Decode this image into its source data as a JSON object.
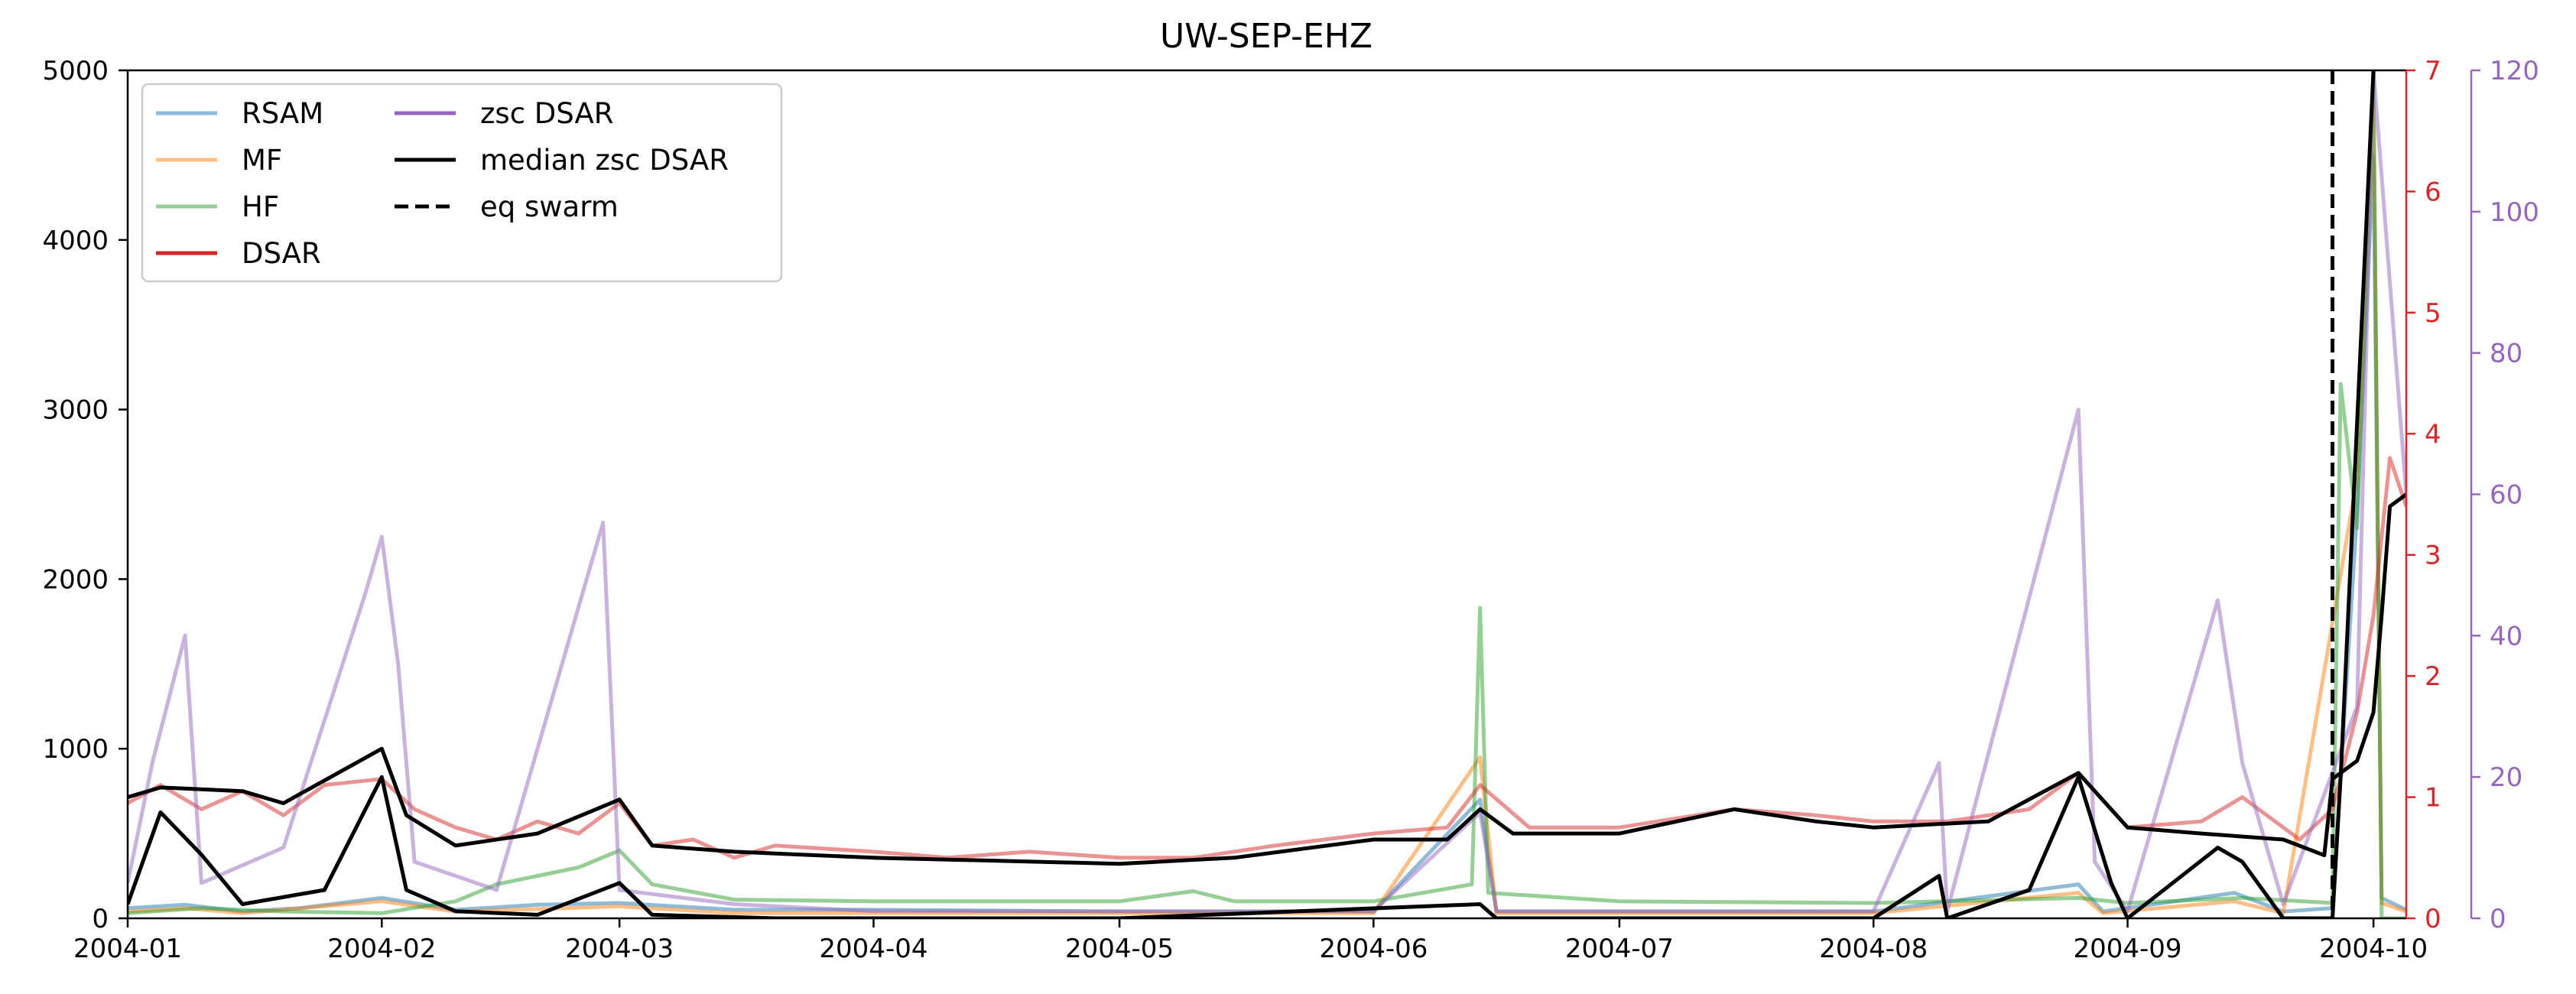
{
  "chart_data": {
    "type": "line",
    "title": "UW-SEP-EHZ",
    "xlabel": "",
    "ylabel": "",
    "x_range": [
      "2004-01-01",
      "2004-10-05"
    ],
    "x_ticks": [
      "2004-01",
      "2004-02",
      "2004-03",
      "2004-04",
      "2004-05",
      "2004-06",
      "2004-07",
      "2004-08",
      "2004-09",
      "2004-10"
    ],
    "axes": {
      "left": {
        "ylim": [
          0,
          5000
        ],
        "ticks": [
          "0",
          "1000",
          "2000",
          "3000",
          "4000",
          "5000"
        ],
        "color": "#000000"
      },
      "right1": {
        "ylim": [
          0,
          7
        ],
        "ticks": [
          "0",
          "1",
          "2",
          "3",
          "4",
          "5",
          "6",
          "7"
        ],
        "color": "#d62728"
      },
      "right2": {
        "ylim": [
          0,
          120
        ],
        "ticks": [
          "0",
          "20",
          "40",
          "60",
          "80",
          "100",
          "120"
        ],
        "color": "#9467bd"
      }
    },
    "legend": {
      "placement": "upper-left",
      "columns": 2,
      "entries": [
        {
          "label": "RSAM",
          "color": "#1f77b4",
          "style": "solid",
          "alpha": 0.5
        },
        {
          "label": "MF",
          "color": "#ff7f0e",
          "style": "solid",
          "alpha": 0.5
        },
        {
          "label": "HF",
          "color": "#2ca02c",
          "style": "solid",
          "alpha": 0.5
        },
        {
          "label": "DSAR",
          "color": "#d62728",
          "style": "solid",
          "alpha": 1
        },
        {
          "label": "zsc DSAR",
          "color": "#9467bd",
          "style": "solid",
          "alpha": 1
        },
        {
          "label": "median zsc DSAR",
          "color": "#000000",
          "style": "solid",
          "alpha": 1
        },
        {
          "label": "eq swarm",
          "color": "#000000",
          "style": "dashed",
          "alpha": 1
        }
      ]
    },
    "series": [
      {
        "name": "RSAM",
        "axis": "left",
        "color": "#1f77b4",
        "alpha": 0.5,
        "points": [
          [
            "2004-01-01",
            60
          ],
          [
            "2004-01-08",
            80
          ],
          [
            "2004-01-15",
            40
          ],
          [
            "2004-01-22",
            60
          ],
          [
            "2004-02-01",
            120
          ],
          [
            "2004-02-10",
            50
          ],
          [
            "2004-02-20",
            80
          ],
          [
            "2004-03-01",
            90
          ],
          [
            "2004-03-15",
            50
          ],
          [
            "2004-04-01",
            50
          ],
          [
            "2004-05-01",
            40
          ],
          [
            "2004-06-01",
            40
          ],
          [
            "2004-06-14",
            700
          ],
          [
            "2004-06-16",
            40
          ],
          [
            "2004-07-01",
            40
          ],
          [
            "2004-08-01",
            40
          ],
          [
            "2004-08-26",
            200
          ],
          [
            "2004-08-29",
            40
          ],
          [
            "2004-09-14",
            150
          ],
          [
            "2004-09-20",
            40
          ],
          [
            "2004-09-26",
            60
          ],
          [
            "2004-09-29",
            2400
          ],
          [
            "2004-10-01",
            4500
          ],
          [
            "2004-10-02",
            120
          ],
          [
            "2004-10-05",
            50
          ]
        ]
      },
      {
        "name": "MF",
        "axis": "left",
        "color": "#ff7f0e",
        "alpha": 0.5,
        "points": [
          [
            "2004-01-01",
            40
          ],
          [
            "2004-01-08",
            60
          ],
          [
            "2004-01-15",
            30
          ],
          [
            "2004-02-01",
            100
          ],
          [
            "2004-02-10",
            40
          ],
          [
            "2004-03-01",
            70
          ],
          [
            "2004-03-15",
            30
          ],
          [
            "2004-04-01",
            30
          ],
          [
            "2004-05-01",
            30
          ],
          [
            "2004-06-01",
            30
          ],
          [
            "2004-06-14",
            950
          ],
          [
            "2004-06-16",
            30
          ],
          [
            "2004-07-01",
            30
          ],
          [
            "2004-08-01",
            30
          ],
          [
            "2004-08-26",
            150
          ],
          [
            "2004-08-29",
            30
          ],
          [
            "2004-09-14",
            100
          ],
          [
            "2004-09-20",
            30
          ],
          [
            "2004-09-29",
            2600
          ],
          [
            "2004-10-01",
            4800
          ],
          [
            "2004-10-02",
            90
          ],
          [
            "2004-10-05",
            40
          ]
        ]
      },
      {
        "name": "HF",
        "axis": "left",
        "color": "#2ca02c",
        "alpha": 0.5,
        "points": [
          [
            "2004-01-01",
            30
          ],
          [
            "2004-01-10",
            60
          ],
          [
            "2004-01-20",
            40
          ],
          [
            "2004-02-01",
            30
          ],
          [
            "2004-02-10",
            100
          ],
          [
            "2004-02-15",
            200
          ],
          [
            "2004-02-25",
            300
          ],
          [
            "2004-03-01",
            400
          ],
          [
            "2004-03-05",
            200
          ],
          [
            "2004-03-15",
            110
          ],
          [
            "2004-04-01",
            100
          ],
          [
            "2004-05-01",
            100
          ],
          [
            "2004-05-10",
            160
          ],
          [
            "2004-05-15",
            100
          ],
          [
            "2004-06-01",
            100
          ],
          [
            "2004-06-13",
            200
          ],
          [
            "2004-06-14",
            1830
          ],
          [
            "2004-06-15",
            150
          ],
          [
            "2004-07-01",
            100
          ],
          [
            "2004-08-01",
            90
          ],
          [
            "2004-08-26",
            120
          ],
          [
            "2004-09-01",
            90
          ],
          [
            "2004-09-15",
            120
          ],
          [
            "2004-09-26",
            90
          ],
          [
            "2004-09-27",
            3150
          ],
          [
            "2004-09-29",
            2300
          ],
          [
            "2004-10-01",
            5000
          ],
          [
            "2004-10-02",
            0
          ],
          [
            "2004-10-05",
            0
          ]
        ]
      },
      {
        "name": "DSAR",
        "axis": "right1",
        "color": "#d62728",
        "alpha": 0.5,
        "points": [
          [
            "2004-01-01",
            0.95
          ],
          [
            "2004-01-05",
            1.1
          ],
          [
            "2004-01-10",
            0.9
          ],
          [
            "2004-01-15",
            1.05
          ],
          [
            "2004-01-20",
            0.85
          ],
          [
            "2004-01-25",
            1.1
          ],
          [
            "2004-02-01",
            1.15
          ],
          [
            "2004-02-05",
            0.9
          ],
          [
            "2004-02-10",
            0.75
          ],
          [
            "2004-02-15",
            0.65
          ],
          [
            "2004-02-20",
            0.8
          ],
          [
            "2004-02-25",
            0.7
          ],
          [
            "2004-03-01",
            0.95
          ],
          [
            "2004-03-05",
            0.6
          ],
          [
            "2004-03-10",
            0.65
          ],
          [
            "2004-03-15",
            0.5
          ],
          [
            "2004-03-20",
            0.6
          ],
          [
            "2004-04-01",
            0.55
          ],
          [
            "2004-04-10",
            0.5
          ],
          [
            "2004-04-20",
            0.55
          ],
          [
            "2004-05-01",
            0.5
          ],
          [
            "2004-05-10",
            0.5
          ],
          [
            "2004-05-20",
            0.6
          ],
          [
            "2004-06-01",
            0.7
          ],
          [
            "2004-06-10",
            0.75
          ],
          [
            "2004-06-14",
            1.1
          ],
          [
            "2004-06-20",
            0.75
          ],
          [
            "2004-07-01",
            0.75
          ],
          [
            "2004-07-15",
            0.9
          ],
          [
            "2004-07-25",
            0.85
          ],
          [
            "2004-08-01",
            0.8
          ],
          [
            "2004-08-10",
            0.8
          ],
          [
            "2004-08-20",
            0.9
          ],
          [
            "2004-08-26",
            1.2
          ],
          [
            "2004-09-01",
            0.75
          ],
          [
            "2004-09-10",
            0.8
          ],
          [
            "2004-09-15",
            1.0
          ],
          [
            "2004-09-22",
            0.65
          ],
          [
            "2004-09-26",
            0.9
          ],
          [
            "2004-09-29",
            1.7
          ],
          [
            "2004-10-01",
            2.5
          ],
          [
            "2004-10-03",
            3.8
          ],
          [
            "2004-10-05",
            3.4
          ]
        ]
      },
      {
        "name": "zsc DSAR",
        "axis": "right2",
        "color": "#9467bd",
        "alpha": 0.5,
        "points": [
          [
            "2004-01-01",
            5
          ],
          [
            "2004-01-04",
            22
          ],
          [
            "2004-01-08",
            40
          ],
          [
            "2004-01-10",
            5
          ],
          [
            "2004-01-20",
            10
          ],
          [
            "2004-01-30",
            46
          ],
          [
            "2004-02-01",
            54
          ],
          [
            "2004-02-03",
            36
          ],
          [
            "2004-02-05",
            8
          ],
          [
            "2004-02-15",
            4
          ],
          [
            "2004-02-28",
            56
          ],
          [
            "2004-03-01",
            4
          ],
          [
            "2004-03-15",
            2
          ],
          [
            "2004-04-01",
            1
          ],
          [
            "2004-05-01",
            1
          ],
          [
            "2004-06-01",
            1
          ],
          [
            "2004-06-14",
            15
          ],
          [
            "2004-06-16",
            1
          ],
          [
            "2004-07-01",
            1
          ],
          [
            "2004-08-01",
            1
          ],
          [
            "2004-08-09",
            22
          ],
          [
            "2004-08-10",
            1
          ],
          [
            "2004-08-26",
            72
          ],
          [
            "2004-08-28",
            8
          ],
          [
            "2004-09-01",
            1
          ],
          [
            "2004-09-12",
            45
          ],
          [
            "2004-09-15",
            22
          ],
          [
            "2004-09-20",
            2
          ],
          [
            "2004-09-29",
            30
          ],
          [
            "2004-10-01",
            120
          ],
          [
            "2004-10-05",
            60
          ]
        ]
      },
      {
        "name": "median zsc DSAR",
        "axis": "right1",
        "color": "#000000",
        "alpha": 1,
        "points": [
          [
            "2004-01-01",
            1.0
          ],
          [
            "2004-01-05",
            1.08
          ],
          [
            "2004-01-15",
            1.05
          ],
          [
            "2004-01-20",
            0.95
          ],
          [
            "2004-02-01",
            1.4
          ],
          [
            "2004-02-04",
            0.85
          ],
          [
            "2004-02-10",
            0.6
          ],
          [
            "2004-02-20",
            0.7
          ],
          [
            "2004-03-01",
            0.98
          ],
          [
            "2004-03-05",
            0.6
          ],
          [
            "2004-03-15",
            0.55
          ],
          [
            "2004-04-01",
            0.5
          ],
          [
            "2004-05-01",
            0.45
          ],
          [
            "2004-05-15",
            0.5
          ],
          [
            "2004-06-01",
            0.65
          ],
          [
            "2004-06-10",
            0.65
          ],
          [
            "2004-06-14",
            0.9
          ],
          [
            "2004-06-18",
            0.7
          ],
          [
            "2004-07-01",
            0.7
          ],
          [
            "2004-07-15",
            0.9
          ],
          [
            "2004-07-25",
            0.8
          ],
          [
            "2004-08-01",
            0.75
          ],
          [
            "2004-08-15",
            0.8
          ],
          [
            "2004-08-26",
            1.2
          ],
          [
            "2004-09-01",
            0.75
          ],
          [
            "2004-09-10",
            0.7
          ],
          [
            "2004-09-20",
            0.65
          ],
          [
            "2004-09-25",
            0.52
          ],
          [
            "2004-09-26",
            1.15
          ],
          [
            "2004-09-29",
            1.3
          ],
          [
            "2004-10-01",
            1.7
          ],
          [
            "2004-10-02",
            2.5
          ],
          [
            "2004-10-03",
            3.4
          ],
          [
            "2004-10-05",
            3.5
          ]
        ]
      },
      {
        "name": "median zsc DSAR",
        "axis": "right2",
        "color": "#000000",
        "alpha": 1,
        "points": [
          [
            "2004-01-01",
            2
          ],
          [
            "2004-01-05",
            15
          ],
          [
            "2004-01-10",
            9
          ],
          [
            "2004-01-15",
            2
          ],
          [
            "2004-01-25",
            4
          ],
          [
            "2004-02-01",
            20
          ],
          [
            "2004-02-04",
            4
          ],
          [
            "2004-02-10",
            1
          ],
          [
            "2004-02-20",
            0.5
          ],
          [
            "2004-03-01",
            5
          ],
          [
            "2004-03-05",
            0.5
          ],
          [
            "2004-03-20",
            0
          ],
          [
            "2004-05-01",
            0
          ],
          [
            "2004-06-14",
            2
          ],
          [
            "2004-06-16",
            0
          ],
          [
            "2004-08-01",
            0
          ],
          [
            "2004-08-09",
            6
          ],
          [
            "2004-08-10",
            0
          ],
          [
            "2004-08-20",
            4
          ],
          [
            "2004-08-26",
            20
          ],
          [
            "2004-08-30",
            5
          ],
          [
            "2004-09-01",
            0
          ],
          [
            "2004-09-12",
            10
          ],
          [
            "2004-09-15",
            8
          ],
          [
            "2004-09-20",
            0
          ],
          [
            "2004-09-26",
            0
          ],
          [
            "2004-09-27",
            20
          ],
          [
            "2004-10-01",
            120
          ]
        ]
      }
    ],
    "annotations": [
      {
        "type": "vline",
        "x": "2004-09-26",
        "label": "eq swarm",
        "style": "dashed",
        "color": "#000000"
      }
    ]
  }
}
